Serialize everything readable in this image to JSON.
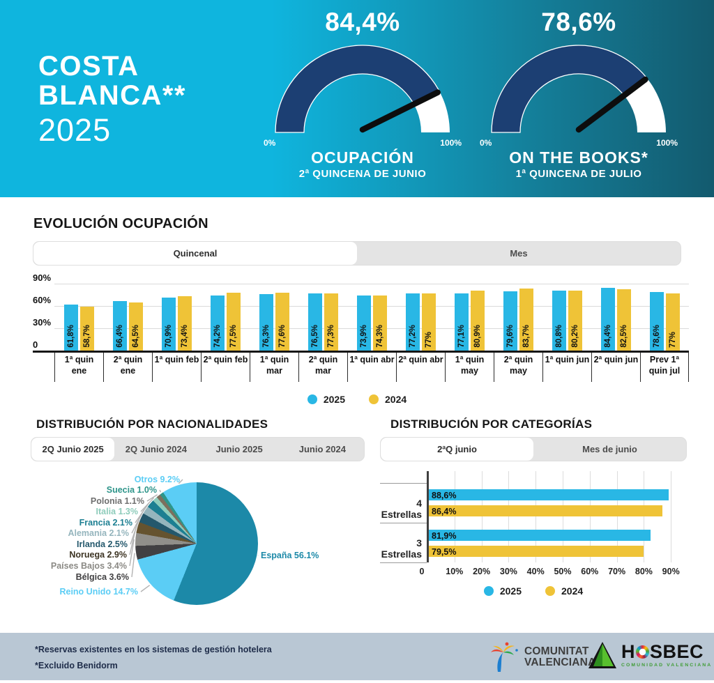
{
  "header": {
    "title_line1": "COSTA",
    "title_line2": "BLANCA**",
    "title_line3": "2025"
  },
  "colors": {
    "accent_blue_2025": "#29b7e5",
    "accent_yellow_2024": "#efc337",
    "gauge_navy": "#1c3f73",
    "header_gradient_start": "#0fb5de",
    "header_gradient_end": "#135a6e",
    "footer_bg": "#b9c7d4"
  },
  "sections": {
    "evolution": {
      "heading": "EVOLUCIÓN OCUPACIÓN",
      "tabs": [
        {
          "label": "Quincenal",
          "active": true
        },
        {
          "label": "Mes",
          "active": false
        }
      ]
    },
    "nationalities": {
      "heading": "DISTRIBUCIÓN POR NACIONALIDADES",
      "tabs": [
        {
          "label": "2Q Junio 2025",
          "active": true
        },
        {
          "label": "2Q Junio 2024",
          "active": false
        },
        {
          "label": "Junio 2025",
          "active": false
        },
        {
          "label": "Junio 2024",
          "active": false
        }
      ]
    },
    "categories": {
      "heading": "DISTRIBUCIÓN POR CATEGORÍAS",
      "tabs": [
        {
          "label": "2ªQ junio",
          "active": true
        },
        {
          "label": "Mes de junio",
          "active": false
        }
      ]
    }
  },
  "legend": {
    "items": [
      {
        "label": "2025",
        "color": "#29b7e5"
      },
      {
        "label": "2024",
        "color": "#efc337"
      }
    ]
  },
  "chart_data": [
    {
      "id": "gauge-ocupacion",
      "type": "gauge",
      "value": 84.4,
      "value_label": "84,4%",
      "min_label": "0%",
      "max_label": "100%",
      "caption": "OCUPACIÓN",
      "subcaption": "2ª QUINCENA DE JUNIO",
      "range": [
        0,
        100
      ]
    },
    {
      "id": "gauge-on-the-books",
      "type": "gauge",
      "value": 78.6,
      "value_label": "78,6%",
      "min_label": "0%",
      "max_label": "100%",
      "caption": "ON THE BOOKS*",
      "subcaption": "1ª QUINCENA DE JULIO",
      "range": [
        0,
        100
      ]
    },
    {
      "id": "evolution",
      "type": "bar",
      "title": "EVOLUCIÓN OCUPACIÓN",
      "categories": [
        "1ª quin ene",
        "2ª quin ene",
        "1ª quin feb",
        "2ª quin feb",
        "1ª quin mar",
        "2ª quin mar",
        "1ª quin abr",
        "2ª quin abr",
        "1ª quin may",
        "2ª quin may",
        "1ª quin jun",
        "2ª quin jun",
        "Prev 1ª quin jul"
      ],
      "series": [
        {
          "name": "2025",
          "color": "#29b7e5",
          "values": [
            61.8,
            66.4,
            70.9,
            74.2,
            76.3,
            76.5,
            73.9,
            77.2,
            77.1,
            79.6,
            80.8,
            84.4,
            78.6
          ],
          "labels": [
            "61,8%",
            "66,4%",
            "70,9%",
            "74,2%",
            "76,3%",
            "76,5%",
            "73,9%",
            "77,2%",
            "77,1%",
            "79,6%",
            "80,8%",
            "84,4%",
            "78,6%"
          ]
        },
        {
          "name": "2024",
          "color": "#efc337",
          "values": [
            58.7,
            64.5,
            73.4,
            77.5,
            77.6,
            77.3,
            74.3,
            77.0,
            80.9,
            83.7,
            80.2,
            82.5,
            77.0
          ],
          "labels": [
            "58,7%",
            "64,5%",
            "73,4%",
            "77,5%",
            "77,6%",
            "77,3%",
            "74,3%",
            "77%",
            "80,9%",
            "83,7%",
            "80,2%",
            "82,5%",
            "77%"
          ]
        }
      ],
      "y_ticks": [
        {
          "label": "90%",
          "value": 90
        },
        {
          "label": "60%",
          "value": 60
        },
        {
          "label": "30%",
          "value": 30
        },
        {
          "label": "0",
          "value": 0
        }
      ],
      "ylim": [
        0,
        90
      ],
      "grid": true,
      "legend_position": "bottom"
    },
    {
      "id": "nationalities",
      "type": "pie",
      "slices": [
        {
          "label": "España",
          "value": 56.1,
          "text": "España 56.1%",
          "color": "#1c89a8",
          "label_color": "#1c89a8"
        },
        {
          "label": "Reino Unido",
          "value": 14.7,
          "text": "Reino Unido 14.7%",
          "color": "#5bcdf5",
          "label_color": "#5bcdf5"
        },
        {
          "label": "Bélgica",
          "value": 3.6,
          "text": "Bélgica 3.6%",
          "color": "#414042",
          "label_color": "#414042"
        },
        {
          "label": "Países Bajos",
          "value": 3.4,
          "text": "Países Bajos 3.4%",
          "color": "#908f8a",
          "label_color": "#8b8a85"
        },
        {
          "label": "Noruega",
          "value": 2.9,
          "text": "Noruega 2.9%",
          "color": "#65532f",
          "label_color": "#3c3322"
        },
        {
          "label": "Irlanda",
          "value": 2.5,
          "text": "Irlanda 2.5%",
          "color": "#24586c",
          "label_color": "#24586c"
        },
        {
          "label": "Alemania",
          "value": 2.1,
          "text": "Alemania 2.1%",
          "color": "#95b5bd",
          "label_color": "#95b5bd"
        },
        {
          "label": "Francia",
          "value": 2.1,
          "text": "Francia 2.1%",
          "color": "#1c7f92",
          "label_color": "#1c7f92"
        },
        {
          "label": "Italia",
          "value": 1.3,
          "text": "Italia 1.3%",
          "color": "#8eccbb",
          "label_color": "#8eccbb"
        },
        {
          "label": "Polonia",
          "value": 1.1,
          "text": "Polonia 1.1%",
          "color": "#7d6f5d",
          "label_color": "#6f6f6f"
        },
        {
          "label": "Suecia",
          "value": 1.0,
          "text": "Suecia 1.0%",
          "color": "#2e958a",
          "label_color": "#2e958a"
        },
        {
          "label": "Otros",
          "value": 9.2,
          "text": "Otros 9.2%",
          "color": "#5bcdf5",
          "label_color": "#5bcdf5"
        }
      ]
    },
    {
      "id": "categories",
      "type": "bar",
      "orientation": "horizontal",
      "categories": [
        "4 Estrellas",
        "3 Estrellas"
      ],
      "series": [
        {
          "name": "2025",
          "color": "#29b7e5",
          "values": [
            88.6,
            81.9
          ],
          "labels": [
            "88,6%",
            "81,9%"
          ]
        },
        {
          "name": "2024",
          "color": "#efc337",
          "values": [
            86.4,
            79.5
          ],
          "labels": [
            "86,4%",
            "79,5%"
          ]
        }
      ],
      "x_ticks": [
        {
          "label": "0",
          "value": 0
        },
        {
          "label": "10%",
          "value": 10
        },
        {
          "label": "20%",
          "value": 20
        },
        {
          "label": "30%",
          "value": 30
        },
        {
          "label": "40%",
          "value": 40
        },
        {
          "label": "50%",
          "value": 50
        },
        {
          "label": "60%",
          "value": 60
        },
        {
          "label": "70%",
          "value": 70
        },
        {
          "label": "80%",
          "value": 80
        },
        {
          "label": "90%",
          "value": 90
        }
      ],
      "xlim": [
        0,
        96
      ],
      "grid": true,
      "legend_position": "bottom"
    }
  ],
  "footer": {
    "notes": [
      "*Reservas existentes en los sistemas de gestión hotelera",
      "*Excluido Benidorm"
    ],
    "logos": {
      "cv_line1": "COMUNITAT",
      "cv_line2": "VALENCIANA",
      "hosbec_prefix": "H",
      "hosbec_suffix": "SBEC",
      "hosbec_sub": "COMUNIDAD VALENCIANA"
    }
  }
}
